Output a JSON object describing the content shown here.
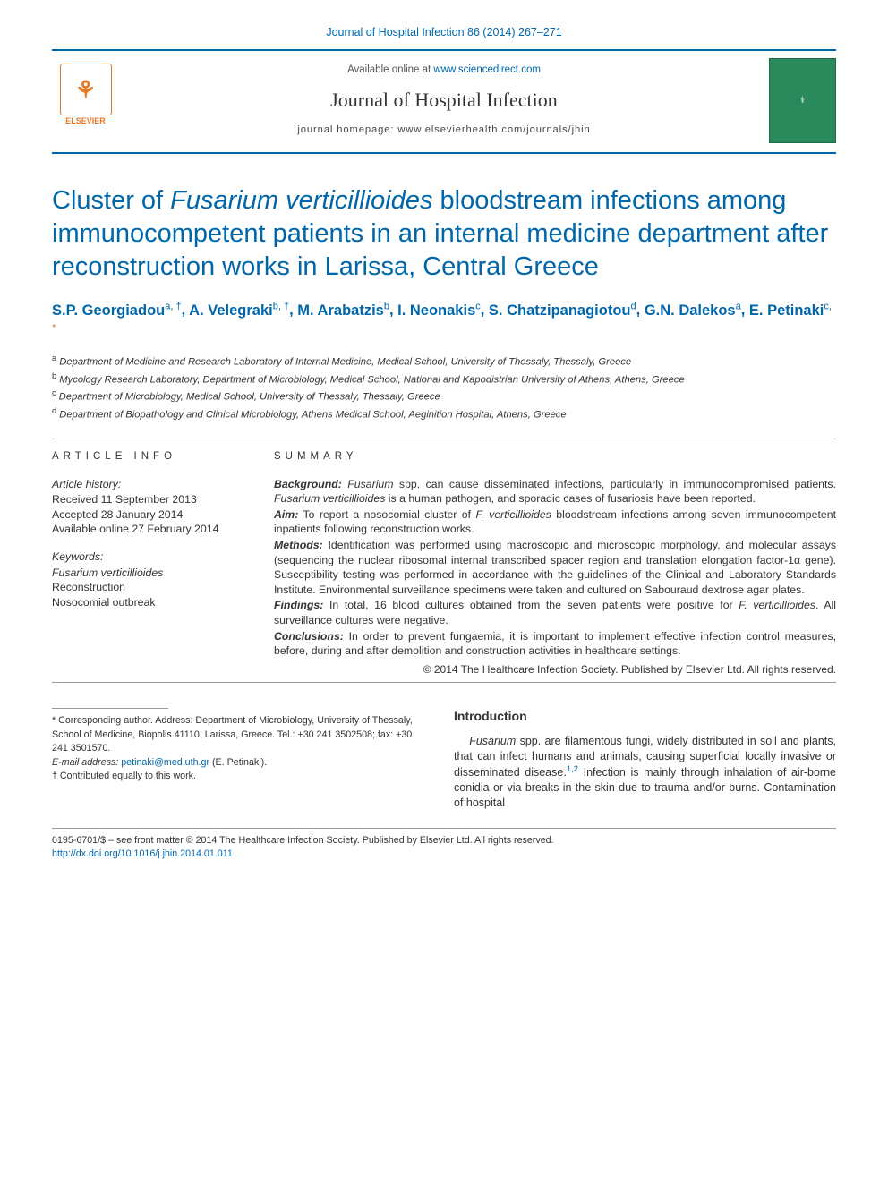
{
  "topCitation": "Journal of Hospital Infection 86 (2014) 267–271",
  "header": {
    "availableText": "Available online at ",
    "sdLink": "www.sciencedirect.com",
    "journalName": "Journal of Hospital Infection",
    "homepageLine": "journal homepage: www.elsevierhealth.com/journals/jhin",
    "elsevierLabel": "ELSEVIER",
    "coverPlaceholder": "⚕"
  },
  "title": {
    "pre": "Cluster of ",
    "ital": "Fusarium verticillioides",
    "post": " bloodstream infections among immunocompetent patients in an internal medicine department after reconstruction works in Larissa, Central Greece"
  },
  "authors": [
    {
      "name": "S.P. Georgiadou",
      "sup": "a, †"
    },
    {
      "name": "A. Velegraki",
      "sup": "b, †"
    },
    {
      "name": "M. Arabatzis",
      "sup": "b"
    },
    {
      "name": "I. Neonakis",
      "sup": "c"
    },
    {
      "name": "S. Chatzipanagiotou",
      "sup": "d"
    },
    {
      "name": "G.N. Dalekos",
      "sup": "a"
    },
    {
      "name": "E. Petinaki",
      "sup": "c, ",
      "star": "*"
    }
  ],
  "affiliations": [
    {
      "key": "a",
      "text": "Department of Medicine and Research Laboratory of Internal Medicine, Medical School, University of Thessaly, Thessaly, Greece"
    },
    {
      "key": "b",
      "text": "Mycology Research Laboratory, Department of Microbiology, Medical School, National and Kapodistrian University of Athens, Athens, Greece"
    },
    {
      "key": "c",
      "text": "Department of Microbiology, Medical School, University of Thessaly, Thessaly, Greece"
    },
    {
      "key": "d",
      "text": "Department of Biopathology and Clinical Microbiology, Athens Medical School, Aeginition Hospital, Athens, Greece"
    }
  ],
  "articleInfo": {
    "heading": "ARTICLE INFO",
    "historyLabel": "Article history:",
    "received": "Received 11 September 2013",
    "accepted": "Accepted 28 January 2014",
    "online": "Available online 27 February 2014",
    "keywordsLabel": "Keywords:",
    "keywords": [
      "Fusarium verticillioides",
      "Reconstruction",
      "Nosocomial outbreak"
    ]
  },
  "summary": {
    "heading": "SUMMARY",
    "sections": {
      "Background": "Fusarium spp. can cause disseminated infections, particularly in immunocompromised patients. Fusarium verticillioides is a human pathogen, and sporadic cases of fusariosis have been reported.",
      "Aim": "To report a nosocomial cluster of F. verticillioides bloodstream infections among seven immunocompetent inpatients following reconstruction works.",
      "Methods": "Identification was performed using macroscopic and microscopic morphology, and molecular assays (sequencing the nuclear ribosomal internal transcribed spacer region and translation elongation factor-1α gene). Susceptibility testing was performed in accordance with the guidelines of the Clinical and Laboratory Standards Institute. Environmental surveillance specimens were taken and cultured on Sabouraud dextrose agar plates.",
      "Findings": "In total, 16 blood cultures obtained from the seven patients were positive for F. verticillioides. All surveillance cultures were negative.",
      "Conclusions": "In order to prevent fungaemia, it is important to implement effective infection control measures, before, during and after demolition and construction activities in healthcare settings."
    },
    "copyright": "© 2014 The Healthcare Infection Society. Published by Elsevier Ltd. All rights reserved."
  },
  "footnotes": {
    "corr": "* Corresponding author. Address: Department of Microbiology, University of Thessaly, School of Medicine, Biopolis 41110, Larissa, Greece. Tel.: +30 241 3502508; fax: +30 241 3501570.",
    "emailLabel": "E-mail address:",
    "email": "petinaki@med.uth.gr",
    "emailSuffix": "(E. Petinaki).",
    "dagger": "† Contributed equally to this work."
  },
  "intro": {
    "heading": "Introduction",
    "para": "Fusarium spp. are filamentous fungi, widely distributed in soil and plants, that can infect humans and animals, causing superficial locally invasive or disseminated disease.",
    "refs": "1,2",
    "para2": " Infection is mainly through inhalation of air-borne conidia or via breaks in the skin due to trauma and/or burns. Contamination of hospital"
  },
  "bottom": {
    "line": "0195-6701/$ – see front matter © 2014 The Healthcare Infection Society. Published by Elsevier Ltd. All rights reserved.",
    "doi": "http://dx.doi.org/10.1016/j.jhin.2014.01.011"
  },
  "colors": {
    "link": "#0066aa",
    "accent": "#e87722",
    "text": "#333333",
    "rule": "#999999",
    "coverBg": "#2a8a5c"
  }
}
